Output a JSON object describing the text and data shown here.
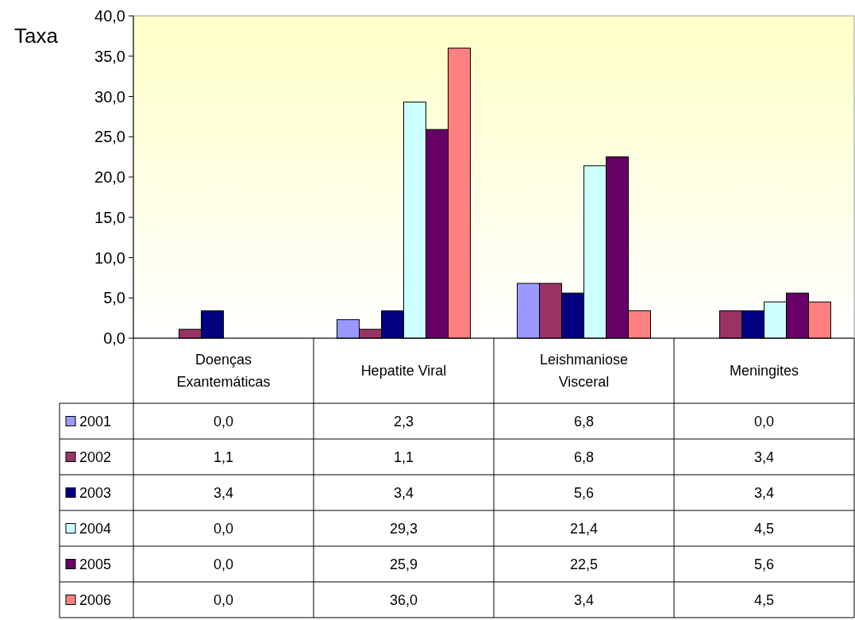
{
  "chart_data": {
    "type": "bar",
    "ylabel": "Taxa",
    "categories": [
      "Doenças Exantemáticas",
      "Hepatite Viral",
      "Leishmaniose Visceral",
      "Meningites"
    ],
    "series": [
      {
        "name": "2001",
        "color": "#9999ff",
        "values": [
          0.0,
          2.3,
          6.8,
          0.0
        ],
        "value_labels": [
          "0,0",
          "2,3",
          "6,8",
          "0,0"
        ]
      },
      {
        "name": "2002",
        "color": "#993366",
        "values": [
          1.1,
          1.1,
          6.8,
          3.4
        ],
        "value_labels": [
          "1,1",
          "1,1",
          "6,8",
          "3,4"
        ]
      },
      {
        "name": "2003",
        "color": "#000080",
        "values": [
          3.4,
          3.4,
          5.6,
          3.4
        ],
        "value_labels": [
          "3,4",
          "3,4",
          "5,6",
          "3,4"
        ]
      },
      {
        "name": "2004",
        "color": "#ccffff",
        "values": [
          0.0,
          29.3,
          21.4,
          4.5
        ],
        "value_labels": [
          "0,0",
          "29,3",
          "21,4",
          "4,5"
        ]
      },
      {
        "name": "2005",
        "color": "#660066",
        "values": [
          0.0,
          25.9,
          22.5,
          5.6
        ],
        "value_labels": [
          "0,0",
          "25,9",
          "22,5",
          "5,6"
        ]
      },
      {
        "name": "2006",
        "color": "#ff8080",
        "values": [
          0.0,
          36.0,
          3.4,
          4.5
        ],
        "value_labels": [
          "0,0",
          "36,0",
          "3,4",
          "4,5"
        ]
      }
    ],
    "ylim": [
      0,
      40
    ],
    "yticks": [
      {
        "value": 0,
        "label": "0,0"
      },
      {
        "value": 5,
        "label": "5,0"
      },
      {
        "value": 10,
        "label": "10,0"
      },
      {
        "value": 15,
        "label": "15,0"
      },
      {
        "value": 20,
        "label": "20,0"
      },
      {
        "value": 25,
        "label": "25,0"
      },
      {
        "value": 30,
        "label": "30,0"
      },
      {
        "value": 35,
        "label": "35,0"
      },
      {
        "value": 40,
        "label": "40,0"
      }
    ],
    "legend": "bottom"
  }
}
